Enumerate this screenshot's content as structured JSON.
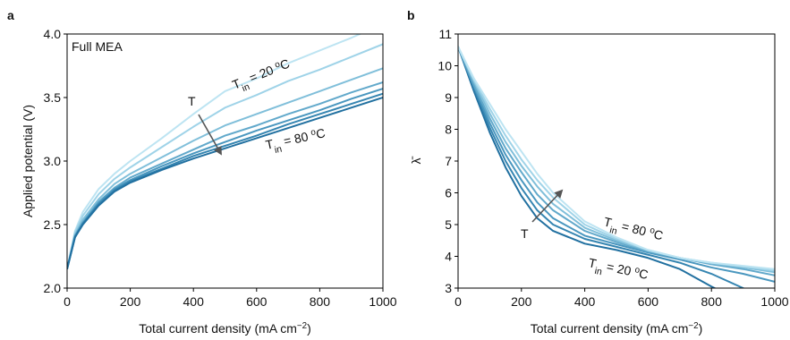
{
  "chart_data": [
    {
      "type": "line",
      "panel_label": "a",
      "xlabel": [
        {
          "text": "Total current density (mA cm"
        },
        {
          "text": "−2",
          "style": "sup"
        },
        {
          "text": ")"
        }
      ],
      "ylabel": [
        {
          "text": "Applied potential (V)"
        }
      ],
      "annotations": [
        [
          {
            "text": "Full MEA"
          }
        ],
        [
          {
            "text": "T"
          },
          {
            "text": "in",
            "style": "sub"
          },
          {
            "text": " = 20 "
          },
          {
            "text": "o",
            "style": "sup"
          },
          {
            "text": "C"
          }
        ],
        [
          {
            "text": "T"
          }
        ],
        [
          {
            "text": "T"
          },
          {
            "text": "in",
            "style": "sub"
          },
          {
            "text": " = 80 "
          },
          {
            "text": "o",
            "style": "sup"
          },
          {
            "text": "C"
          }
        ]
      ],
      "x": [
        0,
        25,
        50,
        100,
        150,
        200,
        300,
        400,
        500,
        600,
        700,
        800,
        900,
        1000
      ],
      "series": [
        {
          "color": "#bde4f2",
          "values": [
            2.15,
            2.45,
            2.6,
            2.78,
            2.9,
            3.0,
            3.18,
            3.37,
            3.55,
            3.65,
            3.77,
            3.87,
            3.97,
            4.08
          ]
        },
        {
          "color": "#9fd3e8",
          "values": [
            2.15,
            2.44,
            2.57,
            2.74,
            2.86,
            2.95,
            3.11,
            3.27,
            3.42,
            3.52,
            3.63,
            3.72,
            3.82,
            3.92
          ]
        },
        {
          "color": "#80bfda",
          "values": [
            2.15,
            2.42,
            2.54,
            2.7,
            2.82,
            2.9,
            3.03,
            3.16,
            3.28,
            3.37,
            3.46,
            3.55,
            3.64,
            3.73
          ]
        },
        {
          "color": "#62a9cb",
          "values": [
            2.15,
            2.41,
            2.52,
            2.68,
            2.79,
            2.87,
            2.98,
            3.09,
            3.2,
            3.28,
            3.37,
            3.45,
            3.54,
            3.62
          ]
        },
        {
          "color": "#4a97bf",
          "values": [
            2.15,
            2.41,
            2.51,
            2.67,
            2.78,
            2.85,
            2.96,
            3.06,
            3.15,
            3.24,
            3.32,
            3.4,
            3.49,
            3.57
          ]
        },
        {
          "color": "#3585b1",
          "values": [
            2.15,
            2.4,
            2.51,
            2.66,
            2.77,
            2.84,
            2.94,
            3.04,
            3.12,
            3.2,
            3.29,
            3.37,
            3.45,
            3.53
          ]
        },
        {
          "color": "#2170a0",
          "values": [
            2.15,
            2.4,
            2.5,
            2.65,
            2.76,
            2.83,
            2.93,
            3.02,
            3.1,
            3.18,
            3.26,
            3.34,
            3.42,
            3.5
          ]
        }
      ],
      "xlim": [
        0,
        1000
      ],
      "xticks": [
        0,
        200,
        400,
        600,
        800,
        1000
      ],
      "ylim": [
        2,
        4
      ],
      "yticks": [
        {
          "value": 2,
          "label": "2.0"
        },
        2.5,
        {
          "value": 3,
          "label": "3.0"
        },
        3.5,
        {
          "value": 4,
          "label": "4.0"
        }
      ]
    },
    {
      "type": "line",
      "panel_label": "b",
      "xlabel": [
        {
          "text": "Total current density (mA cm"
        },
        {
          "text": "−2",
          "style": "sup"
        },
        {
          "text": ")"
        }
      ],
      "ylabel": [
        {
          "text": "λ̄"
        }
      ],
      "annotations": [
        [
          {
            "text": "T"
          },
          {
            "text": "in",
            "style": "sub"
          },
          {
            "text": " = 80 "
          },
          {
            "text": "o",
            "style": "sup"
          },
          {
            "text": "C"
          }
        ],
        [
          {
            "text": "T"
          },
          {
            "text": "in",
            "style": "sub"
          },
          {
            "text": " = 20 "
          },
          {
            "text": "o",
            "style": "sup"
          },
          {
            "text": "C"
          }
        ],
        [
          {
            "text": "T"
          }
        ]
      ],
      "x": [
        0,
        50,
        100,
        150,
        200,
        250,
        300,
        400,
        500,
        600,
        700,
        800,
        900,
        1000
      ],
      "series": [
        {
          "color": "#2170a0",
          "values": [
            10.6,
            9.2,
            7.9,
            6.8,
            5.9,
            5.2,
            4.8,
            4.4,
            4.2,
            3.95,
            3.6,
            3.05,
            2.55,
            null
          ]
        },
        {
          "color": "#3585b1",
          "values": [
            10.6,
            9.3,
            8.05,
            7.0,
            6.15,
            5.45,
            5.0,
            4.55,
            4.3,
            4.05,
            3.8,
            3.45,
            3.0,
            2.5
          ]
        },
        {
          "color": "#4a97bf",
          "values": [
            10.6,
            9.35,
            8.2,
            7.2,
            6.4,
            5.7,
            5.2,
            4.65,
            4.38,
            4.12,
            3.9,
            3.65,
            3.45,
            3.2
          ]
        },
        {
          "color": "#62a9cb",
          "values": [
            10.6,
            9.4,
            8.35,
            7.4,
            6.65,
            5.95,
            5.45,
            4.8,
            4.45,
            4.15,
            3.95,
            3.75,
            3.6,
            3.4
          ]
        },
        {
          "color": "#80bfda",
          "values": [
            10.6,
            9.5,
            8.5,
            7.6,
            6.85,
            6.2,
            5.65,
            4.9,
            4.5,
            4.18,
            3.95,
            3.78,
            3.65,
            3.5
          ]
        },
        {
          "color": "#9fd3e8",
          "values": [
            10.6,
            9.55,
            8.65,
            7.8,
            7.05,
            6.4,
            5.85,
            5.0,
            4.55,
            4.2,
            3.95,
            3.8,
            3.68,
            3.55
          ]
        },
        {
          "color": "#bde4f2",
          "values": [
            10.6,
            9.6,
            8.8,
            8.0,
            7.3,
            6.6,
            6.0,
            5.1,
            4.6,
            4.2,
            3.95,
            3.8,
            3.7,
            3.6
          ]
        }
      ],
      "xlim": [
        0,
        1000
      ],
      "xticks": [
        0,
        200,
        400,
        600,
        800,
        1000
      ],
      "ylim": [
        3,
        11
      ],
      "yticks": [
        3,
        4,
        5,
        6,
        7,
        8,
        9,
        10,
        11
      ]
    }
  ]
}
